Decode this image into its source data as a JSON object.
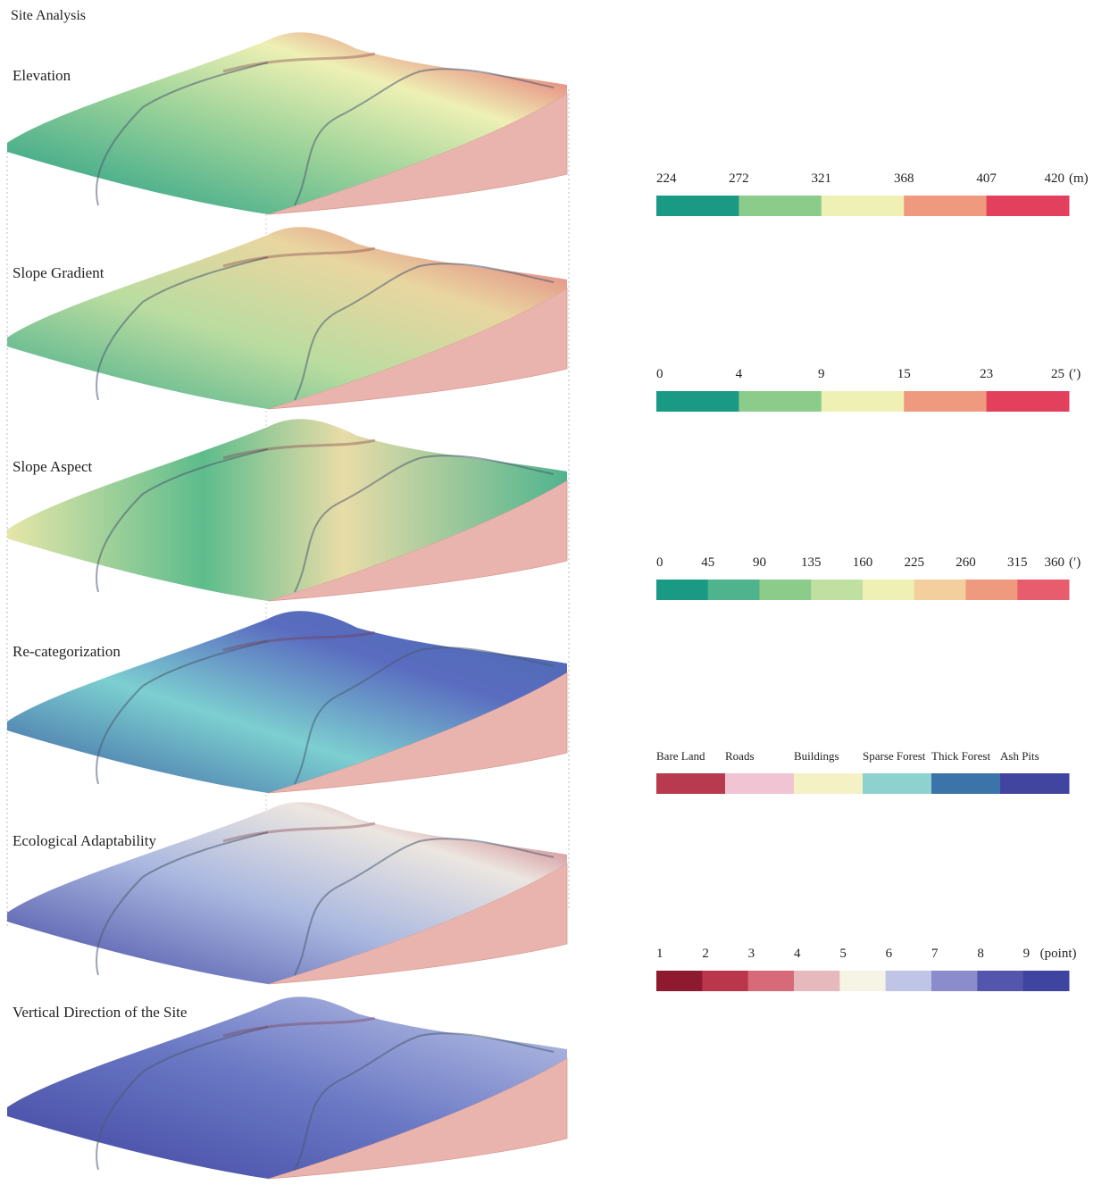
{
  "title": "Site Analysis",
  "layers": [
    {
      "label": "Elevation",
      "legend": {
        "labels": [
          "224",
          "272",
          "321",
          "368",
          "407",
          "420"
        ],
        "unit": "(m)",
        "colors": [
          "#1a9a84",
          "#8ccc8a",
          "#eef0b4",
          "#ef9a7e",
          "#e3405e"
        ]
      }
    },
    {
      "label": "Slope Gradient",
      "legend": {
        "labels": [
          "0",
          "4",
          "9",
          "15",
          "23",
          "25"
        ],
        "unit": "(′)",
        "colors": [
          "#1a9a84",
          "#8ccc8a",
          "#eef0b4",
          "#ef9a7e",
          "#e3405e"
        ]
      }
    },
    {
      "label": "Slope Aspect",
      "legend": {
        "labels": [
          "0",
          "45",
          "90",
          "135",
          "160",
          "225",
          "260",
          "315",
          "360"
        ],
        "unit": "(′)",
        "colors": [
          "#1a9a84",
          "#4fb48e",
          "#8ccc8a",
          "#bfe0a0",
          "#eef0b4",
          "#f3cf9e",
          "#ef9a7e",
          "#e85d6e"
        ]
      }
    },
    {
      "label": "Re-categorization",
      "legend": {
        "labels": [
          "Bare Land",
          "Roads",
          "Buildings",
          "Sparse Forest",
          "Thick Forest",
          "Ash Pits"
        ],
        "colors": [
          "#b73a4e",
          "#f0c4d2",
          "#f4f2c4",
          "#8ed2d0",
          "#3b74a8",
          "#4245a0"
        ]
      }
    },
    {
      "label": "Ecological Adaptability",
      "legend": {
        "labels": [
          "1",
          "2",
          "3",
          "4",
          "5",
          "6",
          "7",
          "8",
          "9"
        ],
        "unit": "(point)",
        "colors": [
          "#8e1a30",
          "#b9364b",
          "#d76a78",
          "#e6b9bc",
          "#f6f4e4",
          "#c0c4e6",
          "#8a8ccc",
          "#5356ac",
          "#3f44a0"
        ]
      }
    },
    {
      "label": "Vertical Direction of the Site"
    }
  ]
}
